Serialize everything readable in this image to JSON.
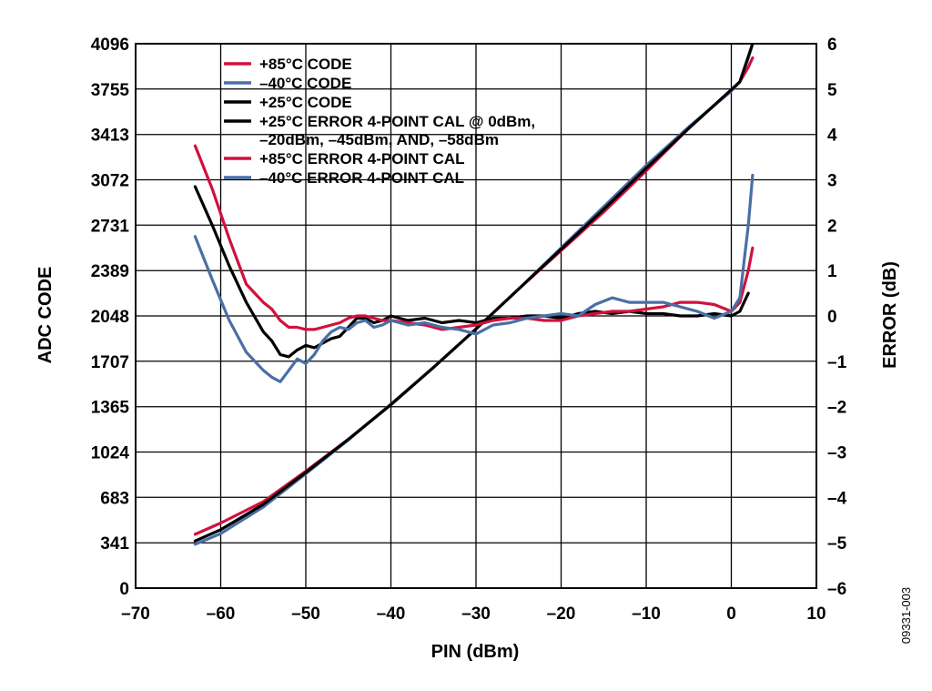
{
  "figure_id": "09331-003",
  "colors": {
    "red": "#d1113d",
    "blue": "#4a6fa5",
    "black": "#000000"
  },
  "chart_data": {
    "type": "line",
    "title": "",
    "xlabel": "PIN (dBm)",
    "ylabel": "ADC CODE",
    "y2label": "ERROR (dB)",
    "xlim": [
      -70,
      10
    ],
    "ylim": [
      0,
      4096
    ],
    "y2lim": [
      -6,
      6
    ],
    "xticks": [
      -70,
      -60,
      -50,
      -40,
      -30,
      -20,
      -10,
      0,
      10
    ],
    "xtick_labels": [
      "–70",
      "–60",
      "–50",
      "–40",
      "–30",
      "–20",
      "–10",
      "0",
      "10"
    ],
    "yticks": [
      0,
      341,
      683,
      1024,
      1365,
      1707,
      2048,
      2389,
      2731,
      3072,
      3413,
      3755,
      4096
    ],
    "ytick_labels": [
      "0",
      "341",
      "683",
      "1024",
      "1365",
      "1707",
      "2048",
      "2389",
      "2731",
      "3072",
      "3413",
      "3755",
      "4096"
    ],
    "y2ticks": [
      -6,
      -5,
      -4,
      -3,
      -2,
      -1,
      0,
      1,
      2,
      3,
      4,
      5,
      6
    ],
    "y2tick_labels": [
      "–6",
      "–5",
      "–4",
      "–3",
      "–2",
      "–1",
      "0",
      "1",
      "2",
      "3",
      "4",
      "5",
      "6"
    ],
    "grid": true,
    "legend_position": "top-left",
    "legend": [
      {
        "label": "+85°C CODE",
        "color": "#d1113d"
      },
      {
        "label": "–40°C CODE",
        "color": "#4a6fa5"
      },
      {
        "label": "+25°C CODE",
        "color": "#000000"
      },
      {
        "label": "+25°C ERROR 4-POINT CAL @ 0dBm,",
        "label_line2": "–20dBm, –45dBm, AND, –58dBm",
        "color": "#000000"
      },
      {
        "label": "+85°C ERROR 4-POINT CAL",
        "color": "#d1113d"
      },
      {
        "label": "–40°C ERROR 4-POINT CAL",
        "color": "#4a6fa5"
      }
    ],
    "series": [
      {
        "name": "+85°C CODE",
        "axis": "left",
        "color": "#d1113d",
        "x": [
          -63,
          -60,
          -55,
          -50,
          -45,
          -40,
          -35,
          -30,
          -25,
          -20,
          -15,
          -10,
          -5,
          0,
          1,
          2,
          2.5
        ],
        "y": [
          405,
          490,
          650,
          880,
          1120,
          1380,
          1660,
          1950,
          2250,
          2540,
          2830,
          3140,
          3460,
          3750,
          3810,
          3920,
          3990
        ]
      },
      {
        "name": "–40°C CODE",
        "axis": "left",
        "color": "#4a6fa5",
        "x": [
          -63,
          -60,
          -55,
          -50,
          -45,
          -40,
          -35,
          -30,
          -25,
          -20,
          -15,
          -10,
          -5,
          0,
          1,
          2,
          2.5
        ],
        "y": [
          330,
          410,
          610,
          860,
          1115,
          1385,
          1660,
          1950,
          2250,
          2560,
          2870,
          3180,
          3470,
          3740,
          3810,
          3990,
          4096
        ]
      },
      {
        "name": "+25°C CODE",
        "axis": "left",
        "color": "#000000",
        "x": [
          -63,
          -60,
          -55,
          -50,
          -45,
          -40,
          -35,
          -30,
          -25,
          -20,
          -15,
          -10,
          -5,
          0,
          1,
          2,
          2.5
        ],
        "y": [
          355,
          440,
          630,
          870,
          1120,
          1380,
          1660,
          1950,
          2250,
          2550,
          2850,
          3160,
          3460,
          3750,
          3810,
          4000,
          4096
        ]
      },
      {
        "name": "+25°C ERROR 4-POINT CAL @ 0dBm, –20dBm, –45dBm, AND, –58dBm",
        "axis": "right",
        "color": "#000000",
        "x": [
          -63,
          -61,
          -59,
          -57,
          -55,
          -54,
          -53,
          -52,
          -51,
          -50,
          -49,
          -48,
          -47,
          -46,
          -45,
          -44,
          -43,
          -42,
          -41,
          -40,
          -38,
          -36,
          -34,
          -32,
          -30,
          -28,
          -26,
          -24,
          -22,
          -20,
          -18,
          -16,
          -14,
          -12,
          -10,
          -8,
          -6,
          -4,
          -2,
          0,
          1,
          1.5,
          2
        ],
        "y": [
          2.85,
          2.0,
          1.1,
          0.3,
          -0.35,
          -0.55,
          -0.85,
          -0.9,
          -0.75,
          -0.65,
          -0.7,
          -0.6,
          -0.5,
          -0.45,
          -0.25,
          -0.05,
          -0.05,
          -0.15,
          -0.1,
          0.0,
          -0.1,
          -0.05,
          -0.15,
          -0.1,
          -0.15,
          -0.05,
          -0.05,
          0.0,
          0.0,
          -0.05,
          0.05,
          0.1,
          0.05,
          0.1,
          0.05,
          0.05,
          0.0,
          0.0,
          0.05,
          0.0,
          0.1,
          0.3,
          0.5
        ]
      },
      {
        "name": "+85°C ERROR 4-POINT CAL",
        "axis": "right",
        "color": "#d1113d",
        "x": [
          -63,
          -61,
          -59,
          -57,
          -55,
          -54,
          -53,
          -52,
          -51,
          -50,
          -49,
          -48,
          -47,
          -46,
          -45,
          -44,
          -43,
          -42,
          -41,
          -40,
          -38,
          -36,
          -34,
          -32,
          -30,
          -28,
          -26,
          -24,
          -22,
          -20,
          -18,
          -16,
          -14,
          -12,
          -10,
          -8,
          -6,
          -4,
          -2,
          0,
          1,
          2,
          2.5
        ],
        "y": [
          3.75,
          2.8,
          1.7,
          0.7,
          0.3,
          0.15,
          -0.1,
          -0.25,
          -0.25,
          -0.3,
          -0.3,
          -0.25,
          -0.2,
          -0.15,
          -0.05,
          0.0,
          0.0,
          -0.05,
          -0.1,
          -0.1,
          -0.15,
          -0.2,
          -0.3,
          -0.25,
          -0.2,
          -0.1,
          -0.05,
          -0.05,
          -0.1,
          -0.1,
          0.0,
          0.05,
          0.1,
          0.1,
          0.15,
          0.2,
          0.3,
          0.3,
          0.25,
          0.1,
          0.3,
          1.0,
          1.5
        ]
      },
      {
        "name": "–40°C ERROR 4-POINT CAL",
        "axis": "right",
        "color": "#4a6fa5",
        "x": [
          -63,
          -61,
          -59,
          -57,
          -55,
          -54,
          -53,
          -52,
          -51,
          -50,
          -49,
          -48,
          -47,
          -46,
          -45,
          -44,
          -43,
          -42,
          -41,
          -40,
          -38,
          -36,
          -34,
          -32,
          -30,
          -28,
          -26,
          -24,
          -22,
          -20,
          -18,
          -16,
          -14,
          -12,
          -10,
          -8,
          -6,
          -4,
          -2,
          0,
          1,
          1.5,
          2,
          2.5
        ],
        "y": [
          1.75,
          0.8,
          -0.1,
          -0.8,
          -1.2,
          -1.35,
          -1.45,
          -1.2,
          -0.95,
          -1.05,
          -0.85,
          -0.55,
          -0.35,
          -0.25,
          -0.3,
          -0.15,
          -0.1,
          -0.25,
          -0.2,
          -0.1,
          -0.2,
          -0.15,
          -0.25,
          -0.3,
          -0.4,
          -0.2,
          -0.15,
          -0.05,
          0.0,
          0.05,
          0.0,
          0.25,
          0.4,
          0.3,
          0.3,
          0.3,
          0.2,
          0.1,
          -0.05,
          0.1,
          0.4,
          1.2,
          2.0,
          3.1
        ]
      }
    ]
  }
}
